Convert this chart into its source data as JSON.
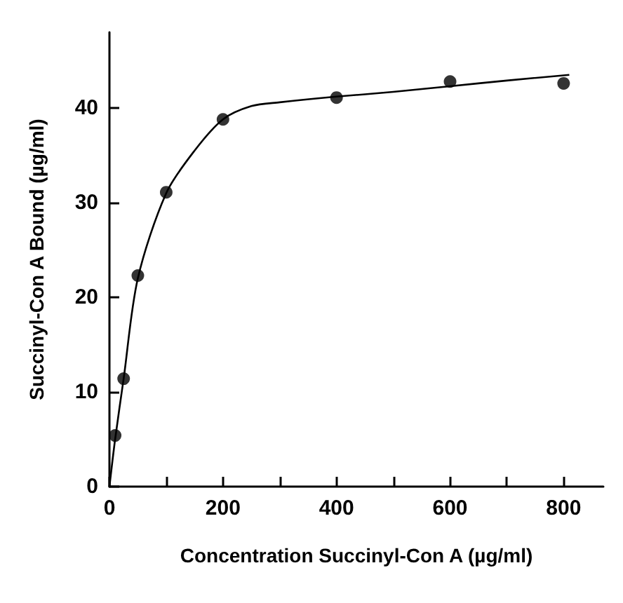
{
  "chart_data": {
    "type": "scatter",
    "xlabel": "Concentration Succinyl-Con A (µg/ml)",
    "ylabel": "Succinyl-Con A Bound (µg/ml)",
    "xlim": [
      0,
      870
    ],
    "ylim": [
      0,
      48
    ],
    "xticks": [
      0,
      {
        "value": 100,
        "label": null
      },
      200,
      {
        "value": 300,
        "label": null
      },
      400,
      {
        "value": 500,
        "label": null
      },
      600,
      {
        "value": 700,
        "label": null
      },
      800
    ],
    "yticks": [
      0,
      10,
      20,
      30,
      40
    ],
    "grid": false,
    "series": [
      {
        "color": "#000000",
        "marker": "circle",
        "x": [
          10,
          25,
          50,
          100,
          200,
          400,
          600,
          800
        ],
        "values": [
          5.4,
          11.4,
          22.3,
          31.1,
          38.8,
          41.1,
          42.8,
          42.6
        ]
      },
      {
        "type": "line",
        "color": "#000000",
        "marker": "none",
        "line_style": "solid",
        "x": [
          0,
          10,
          25,
          50,
          100,
          150,
          200,
          250,
          300,
          400,
          500,
          600,
          700,
          810
        ],
        "values": [
          0,
          5,
          11.4,
          22,
          31,
          35.5,
          38.8,
          40.2,
          40.6,
          41.2,
          41.7,
          42.3,
          42.9,
          43.5
        ]
      }
    ]
  }
}
